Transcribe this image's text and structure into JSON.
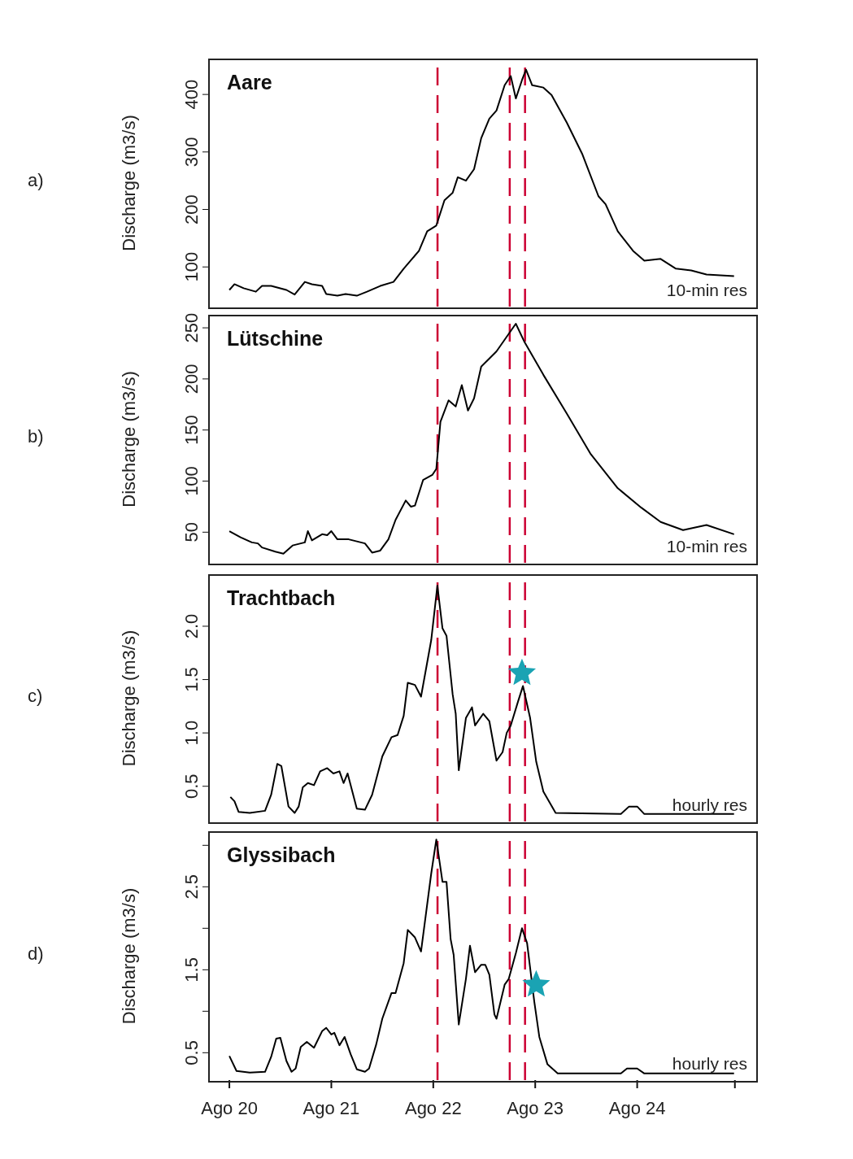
{
  "chart_data": [
    {
      "type": "line",
      "title": "Aare",
      "ylabel": "Discharge (m3/s)",
      "annotations": [
        "a)",
        "10-min res"
      ],
      "xlim": [
        "--08-19T19:12",
        "--08-25T03:50"
      ],
      "ylim": [
        31,
        461
      ],
      "yticks": [
        100,
        200,
        300,
        400
      ],
      "tick_labels": "y",
      "grid": false,
      "marker": "none",
      "ref_lines": [
        {
          "axis": "x",
          "value": "--08-22T01:00",
          "color": "#cc0033",
          "line_style": "dashed"
        },
        {
          "axis": "x",
          "value": "--08-22T18:00",
          "color": "#cc0033",
          "line_style": "dashed"
        },
        {
          "axis": "x",
          "value": "--08-22T21:36",
          "color": "#cc0033",
          "line_style": "dashed"
        }
      ],
      "series": [
        {
          "color": "#000000",
          "x": [
            "--08-20T00:00",
            "--08-20T01:12",
            "--08-20T03:22",
            "--08-20T06:14",
            "--08-20T07:41",
            "--08-20T09:50",
            "--08-20T13:26",
            "--08-20T15:22",
            "--08-20T17:46",
            "--08-20T19:26",
            "--08-20T21:50",
            "--08-20T22:48",
            "--08-21T01:26",
            "--08-21T03:22",
            "--08-21T06:00",
            "--08-21T08:24",
            "--08-21T11:31",
            "--08-21T14:38",
            "--08-21T17:02",
            "--08-21T20:38",
            "--08-21T22:34",
            "--08-22T00:43",
            "--08-22T02:38",
            "--08-22T04:34",
            "--08-22T05:46",
            "--08-22T07:41",
            "--08-22T09:36",
            "--08-22T11:17",
            "--08-22T13:12",
            "--08-22T14:53",
            "--08-22T16:48",
            "--08-22T18:14",
            "--08-22T19:26",
            "--08-22T20:53",
            "--08-22T21:50",
            "--08-22T23:17",
            "--08-23T01:55",
            "--08-23T03:50",
            "--08-23T07:26",
            "--08-23T11:02",
            "--08-23T14:53",
            "--08-23T16:34",
            "--08-23T19:26",
            "--08-23T23:02",
            "--08-24T01:41",
            "--08-24T05:31",
            "--08-24T09:07",
            "--08-24T12:43",
            "--08-24T16:19",
            "--08-24T22:48"
          ],
          "values": [
            60,
            70,
            63,
            57,
            67,
            67,
            60,
            52,
            74,
            70,
            67,
            53,
            50,
            53,
            50,
            57,
            67,
            74,
            97,
            128,
            162,
            172,
            216,
            229,
            256,
            250,
            270,
            324,
            358,
            372,
            416,
            432,
            393,
            425,
            443,
            416,
            412,
            399,
            351,
            297,
            223,
            209,
            162,
            128,
            111,
            114,
            97,
            94,
            87,
            84
          ]
        }
      ]
    },
    {
      "type": "line",
      "title": "Lütschine",
      "ylabel": "Discharge (m3/s)",
      "annotations": [
        "b)",
        "10-min res"
      ],
      "xlim": [
        "--08-19T19:12",
        "--08-25T03:50"
      ],
      "ylim": [
        20,
        262
      ],
      "yticks": [
        50,
        100,
        150,
        200,
        250
      ],
      "tick_labels": "y",
      "grid": false,
      "marker": "none",
      "ref_lines": [
        {
          "axis": "x",
          "value": "--08-22T01:00",
          "color": "#cc0033",
          "line_style": "dashed"
        },
        {
          "axis": "x",
          "value": "--08-22T18:00",
          "color": "#cc0033",
          "line_style": "dashed"
        },
        {
          "axis": "x",
          "value": "--08-22T21:36",
          "color": "#cc0033",
          "line_style": "dashed"
        }
      ],
      "series": [
        {
          "color": "#000000",
          "x": [
            "--08-20T00:00",
            "--08-20T02:38",
            "--08-20T05:17",
            "--08-20T06:43",
            "--08-20T07:41",
            "--08-20T10:48",
            "--08-20T12:43",
            "--08-20T14:53",
            "--08-20T17:46",
            "--08-20T18:29",
            "--08-20T19:26",
            "--08-20T21:50",
            "--08-20T23:02",
            "--08-21T00:00",
            "--08-21T01:26",
            "--08-21T04:05",
            "--08-21T07:55",
            "--08-21T09:36",
            "--08-21T11:31",
            "--08-21T13:26",
            "--08-21T15:07",
            "--08-21T17:31",
            "--08-21T18:43",
            "--08-21T19:41",
            "--08-21T21:36",
            "--08-21T23:46",
            "--08-22T00:43",
            "--08-22T01:41",
            "--08-22T03:36",
            "--08-22T05:17",
            "--08-22T06:43",
            "--08-22T08:10",
            "--08-22T09:36",
            "--08-22T11:17",
            "--08-22T14:53",
            "--08-22T19:26",
            "--08-22T21:22",
            "--08-23T01:55",
            "--08-23T07:26",
            "--08-23T12:58",
            "--08-23T19:26",
            "--08-24T00:58",
            "--08-24T05:31",
            "--08-24T10:48",
            "--08-24T16:19",
            "--08-24T22:48"
          ],
          "values": [
            51,
            45,
            40,
            39,
            35,
            31,
            29,
            37,
            40,
            51,
            42,
            48,
            47,
            51,
            43,
            43,
            39,
            30,
            32,
            43,
            62,
            81,
            75,
            76,
            101,
            106,
            112,
            158,
            179,
            173,
            194,
            169,
            181,
            212,
            227,
            254,
            237,
            204,
            166,
            127,
            93,
            74,
            60,
            52,
            57,
            48
          ]
        }
      ]
    },
    {
      "type": "line",
      "title": "Trachtbach",
      "ylabel": "Discharge (m3/s)",
      "annotations": [
        "c)",
        "hourly res"
      ],
      "xlim": [
        "--08-19T19:12",
        "--08-25T03:50"
      ],
      "ylim": [
        0.17,
        2.48
      ],
      "yticks": [
        0.5,
        {
          "value": 1,
          "label": "1.0"
        },
        1.5,
        {
          "value": 2,
          "label": "2.0"
        }
      ],
      "tick_labels": "y",
      "grid": false,
      "marker": "none",
      "ref_lines": [
        {
          "axis": "x",
          "value": "--08-22T01:00",
          "color": "#cc0033",
          "line_style": "dashed"
        },
        {
          "axis": "x",
          "value": "--08-22T18:00",
          "color": "#cc0033",
          "line_style": "dashed"
        },
        {
          "axis": "x",
          "value": "--08-22T21:36",
          "color": "#cc0033",
          "line_style": "dashed"
        }
      ],
      "series": [
        {
          "color": "#000000",
          "x": [
            "--08-20T00:14",
            "--08-20T01:12",
            "--08-20T02:10",
            "--08-20T04:48",
            "--08-20T08:24",
            "--08-20T09:50",
            "--08-20T11:17",
            "--08-20T12:14",
            "--08-20T13:55",
            "--08-20T15:22",
            "--08-20T16:19",
            "--08-20T17:17",
            "--08-20T18:29",
            "--08-20T19:55",
            "--08-20T21:22",
            "--08-20T23:02",
            "--08-21T00:29",
            "--08-21T01:55",
            "--08-21T02:53",
            "--08-21T03:50",
            "--08-21T06:00",
            "--08-21T07:55",
            "--08-21T09:36",
            "--08-21T12:00",
            "--08-21T14:10",
            "--08-21T15:36",
            "--08-21T17:02",
            "--08-21T18:00",
            "--08-21T19:41",
            "--08-21T21:07",
            "--08-21T23:31",
            "--08-22T00:58",
            "--08-22T02:10",
            "--08-22T03:07",
            "--08-22T04:34",
            "--08-22T05:17",
            "--08-22T06:00",
            "--08-22T07:41",
            "--08-22T09:07",
            "--08-22T09:50",
            "--08-22T11:46",
            "--08-22T13:12",
            "--08-22T14:53",
            "--08-22T16:19",
            "--08-22T17:17",
            "--08-22T18:14",
            "--08-22T19:55",
            "--08-22T21:07",
            "--08-22T22:48",
            "--08-23T00:14",
            "--08-23T01:55",
            "--08-23T04:48",
            "--08-23T20:10",
            "--08-23T22:05",
            "--08-24T00:00",
            "--08-24T01:41",
            "--08-24T22:48"
          ],
          "values": [
            0.4,
            0.36,
            0.26,
            0.25,
            0.27,
            0.42,
            0.71,
            0.69,
            0.31,
            0.25,
            0.31,
            0.49,
            0.53,
            0.51,
            0.64,
            0.67,
            0.62,
            0.64,
            0.53,
            0.62,
            0.29,
            0.28,
            0.42,
            0.78,
            0.96,
            0.98,
            1.16,
            1.47,
            1.45,
            1.34,
            1.87,
            2.38,
            1.98,
            1.91,
            1.36,
            1.18,
            0.65,
            1.14,
            1.24,
            1.07,
            1.18,
            1.11,
            0.74,
            0.82,
            1.0,
            1.07,
            1.29,
            1.44,
            1.14,
            0.73,
            0.45,
            0.25,
            0.24,
            0.31,
            0.31,
            0.24,
            0.24
          ]
        },
        {
          "type": "scatter",
          "marker": "star",
          "color": "#1aa3b3",
          "x": [
            "--08-22T20:53"
          ],
          "values": [
            1.56
          ]
        }
      ]
    },
    {
      "type": "line",
      "title": "Glyssibach",
      "ylabel": "Discharge (m3/s)",
      "annotations": [
        "d)",
        "hourly res"
      ],
      "xlim": [
        "--08-19T19:12",
        "--08-25T03:50"
      ],
      "ylim": [
        0.17,
        3.16
      ],
      "yticks": [
        0.5,
        {
          "value": 1,
          "label": null
        },
        1.5,
        {
          "value": 2,
          "label": null
        },
        2.5,
        {
          "value": 3,
          "label": null
        }
      ],
      "xticks": [
        {
          "value": "--08-20",
          "label": "Ago 20"
        },
        {
          "value": "--08-21",
          "label": "Ago 21"
        },
        {
          "value": "--08-22",
          "label": "Ago 22"
        },
        {
          "value": "--08-23",
          "label": "Ago 23"
        },
        {
          "value": "--08-24",
          "label": "Ago 24"
        },
        {
          "value": "--08-24T23:00",
          "label": null
        }
      ],
      "grid": false,
      "marker": "none",
      "ref_lines": [
        {
          "axis": "x",
          "value": "--08-22T01:00",
          "color": "#cc0033",
          "line_style": "dashed"
        },
        {
          "axis": "x",
          "value": "--08-22T18:00",
          "color": "#cc0033",
          "line_style": "dashed"
        },
        {
          "axis": "x",
          "value": "--08-22T21:36",
          "color": "#cc0033",
          "line_style": "dashed"
        }
      ],
      "series": [
        {
          "color": "#000000",
          "x": [
            "--08-20T00:00",
            "--08-20T01:41",
            "--08-20T04:48",
            "--08-20T08:24",
            "--08-20T09:50",
            "--08-20T11:02",
            "--08-20T12:00",
            "--08-20T13:26",
            "--08-20T14:38",
            "--08-20T15:36",
            "--08-20T16:48",
            "--08-20T18:14",
            "--08-20T19:55",
            "--08-20T21:50",
            "--08-20T22:48",
            "--08-21T00:00",
            "--08-21T00:43",
            "--08-21T01:55",
            "--08-21T03:07",
            "--08-21T04:34",
            "--08-21T06:00",
            "--08-21T07:55",
            "--08-21T08:53",
            "--08-21T10:34",
            "--08-21T12:00",
            "--08-21T14:10",
            "--08-21T15:07",
            "--08-21T17:02",
            "--08-21T18:00",
            "--08-21T19:41",
            "--08-21T21:07",
            "--08-21T23:31",
            "--08-22T00:43",
            "--08-22T02:10",
            "--08-22T03:07",
            "--08-22T04:05",
            "--08-22T04:48",
            "--08-22T06:00",
            "--08-22T07:41",
            "--08-22T08:38",
            "--08-22T09:50",
            "--08-22T11:17",
            "--08-22T12:14",
            "--08-22T13:12",
            "--08-22T14:24",
            "--08-22T14:53",
            "--08-22T16:48",
            "--08-22T17:46",
            "--08-22T19:26",
            "--08-22T20:53",
            "--08-22T22:05",
            "--08-22T23:46",
            "--08-23T00:58",
            "--08-23T02:53",
            "--08-23T05:17",
            "--08-23T20:10",
            "--08-23T21:36",
            "--08-24T00:00",
            "--08-24T01:41",
            "--08-24T22:48"
          ],
          "values": [
            0.46,
            0.28,
            0.26,
            0.27,
            0.45,
            0.67,
            0.68,
            0.4,
            0.27,
            0.31,
            0.57,
            0.63,
            0.56,
            0.76,
            0.8,
            0.72,
            0.74,
            0.59,
            0.69,
            0.48,
            0.3,
            0.27,
            0.31,
            0.6,
            0.91,
            1.22,
            1.22,
            1.58,
            1.98,
            1.89,
            1.72,
            2.66,
            3.07,
            2.56,
            2.56,
            1.87,
            1.68,
            0.84,
            1.39,
            1.79,
            1.47,
            1.56,
            1.56,
            1.44,
            0.96,
            0.91,
            1.32,
            1.39,
            1.7,
            2.0,
            1.82,
            1.12,
            0.69,
            0.36,
            0.25,
            0.25,
            0.31,
            0.31,
            0.25,
            0.25
          ]
        },
        {
          "type": "scatter",
          "marker": "star",
          "color": "#1aa3b3",
          "x": [
            "--08-23T00:14"
          ],
          "values": [
            1.32
          ]
        }
      ]
    }
  ]
}
